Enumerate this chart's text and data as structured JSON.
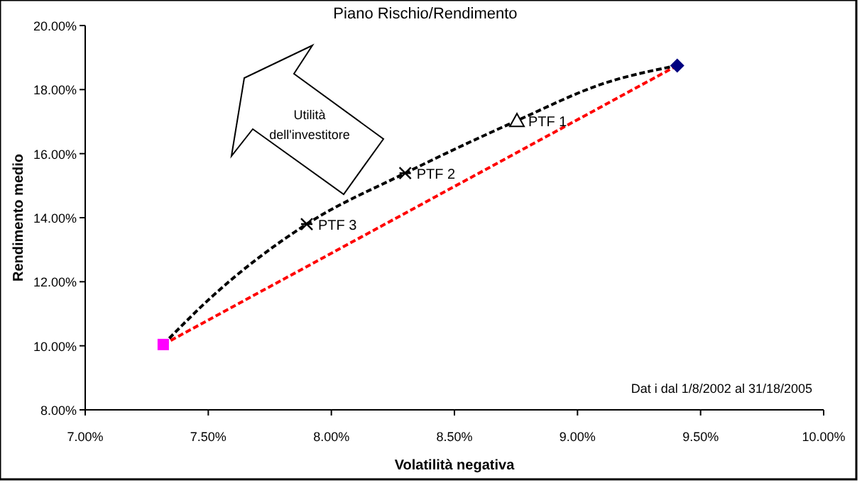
{
  "chart_data": {
    "type": "scatter",
    "title": "Piano Rischio/Rendimento",
    "xlabel": "Volatilità negativa",
    "ylabel": "Rendimento medio",
    "annotations": [
      "Utilità dell'investitore",
      "Dat i dal 1/8/2002 al 31/18/2005"
    ],
    "xlim": [
      7,
      10
    ],
    "ylim": [
      8,
      20
    ],
    "xticks": [
      {
        "value": 7,
        "label": "7.00%"
      },
      {
        "value": 7.5,
        "label": "7.50%"
      },
      {
        "value": 8,
        "label": "8.00%"
      },
      {
        "value": 8.5,
        "label": "8.50%"
      },
      {
        "value": 9,
        "label": "9.00%"
      },
      {
        "value": 9.5,
        "label": "9.50%"
      },
      {
        "value": 10,
        "label": "10.00%"
      }
    ],
    "yticks": [
      {
        "value": 8,
        "label": "8.00%"
      },
      {
        "value": 10,
        "label": "10.00%"
      },
      {
        "value": 12,
        "label": "12.00%"
      },
      {
        "value": 14,
        "label": "14.00%"
      },
      {
        "value": 16,
        "label": "16.00%"
      },
      {
        "value": 18,
        "label": "18.00%"
      },
      {
        "value": 20,
        "label": "20.00%"
      }
    ],
    "grid": false,
    "series": [
      {
        "type": "line",
        "color": "#ff0000",
        "line_style": "dashed",
        "marker": "none",
        "x": [
          7.317,
          9.405
        ],
        "values": [
          10.04,
          18.75
        ]
      },
      {
        "type": "line",
        "color": "#000000",
        "line_style": "dashed",
        "marker": "none",
        "x": [
          7.317,
          7.51,
          7.9,
          8.3,
          8.754,
          9.11,
          9.405
        ],
        "values": [
          10.04,
          11.5,
          13.8,
          15.39,
          17.03,
          18.2,
          18.75
        ]
      },
      {
        "color": "#ff00ff",
        "marker": "square",
        "x": [
          7.317
        ],
        "values": [
          10.04
        ]
      },
      {
        "color": "#000080",
        "marker": "diamond",
        "x": [
          9.405
        ],
        "values": [
          18.75
        ]
      },
      {
        "name": "PTF 1",
        "color": "#000000",
        "marker": "triangle",
        "x": [
          8.754
        ],
        "values": [
          17.03
        ]
      },
      {
        "name": "PTF 2",
        "color": "#000000",
        "marker": "cross",
        "x": [
          8.3
        ],
        "values": [
          15.39
        ]
      },
      {
        "name": "PTF 3",
        "color": "#000000",
        "marker": "cross",
        "x": [
          7.9
        ],
        "values": [
          13.8
        ]
      }
    ]
  }
}
